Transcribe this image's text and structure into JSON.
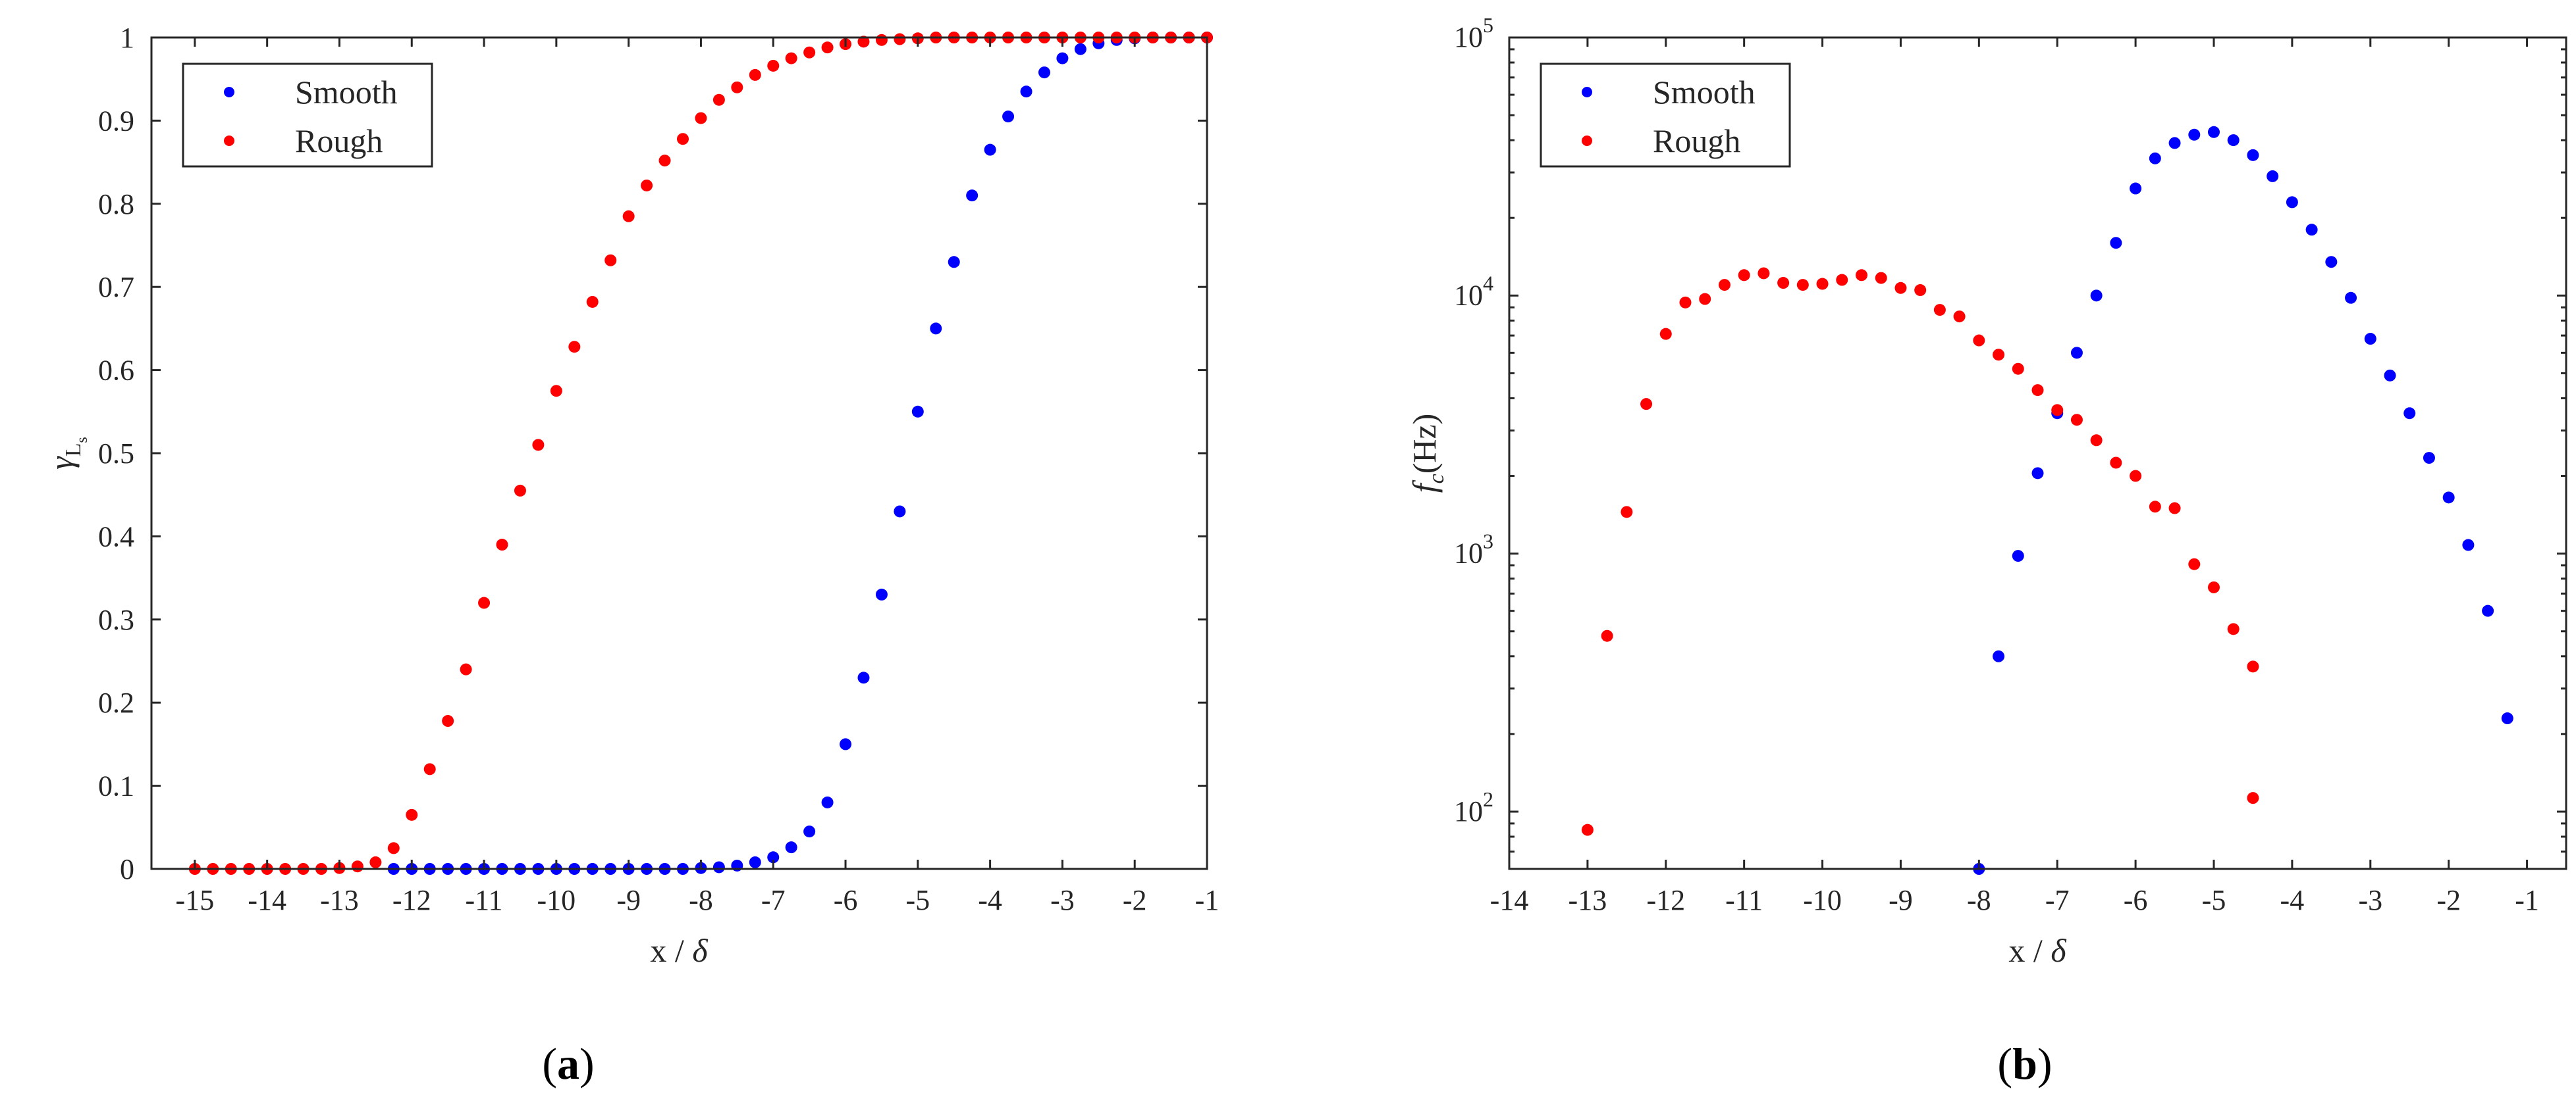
{
  "chart_data": [
    {
      "type": "scatter",
      "panel_label": "(a)",
      "panel_letter": "a",
      "title": "",
      "xlabel_main": "x",
      "xlabel_sep": " / ",
      "xlabel_sym": "δ",
      "ylabel_sym": "γ",
      "ylabel_sub": "L",
      "ylabel_subsub": "s",
      "xlim": [
        -15.6,
        -1
      ],
      "ylim": [
        0,
        1
      ],
      "yscale": "linear",
      "xticks": [
        -15,
        -14,
        -13,
        -12,
        -11,
        -10,
        -9,
        -8,
        -7,
        -6,
        -5,
        -4,
        -3,
        -2,
        -1
      ],
      "xtick_labels": [
        "-15",
        "-14",
        "-13",
        "-12",
        "-11",
        "-10",
        "-9",
        "-8",
        "-7",
        "-6",
        "-5",
        "-4",
        "-3",
        "-2",
        "-1"
      ],
      "yticks": [
        0,
        0.1,
        0.2,
        0.3,
        0.4,
        0.5,
        0.6,
        0.7,
        0.8,
        0.9,
        1
      ],
      "ytick_labels": [
        "0",
        "0.1",
        "0.2",
        "0.3",
        "0.4",
        "0.5",
        "0.6",
        "0.7",
        "0.8",
        "0.9",
        "1"
      ],
      "grid": false,
      "legend_position": "top-left",
      "series": [
        {
          "name": "Smooth",
          "color": "#0000ff",
          "x": [
            -12.25,
            -12,
            -11.75,
            -11.5,
            -11.25,
            -11,
            -10.75,
            -10.5,
            -10.25,
            -10,
            -9.75,
            -9.5,
            -9.25,
            -9,
            -8.75,
            -8.5,
            -8.25,
            -8,
            -7.75,
            -7.5,
            -7.25,
            -7,
            -6.75,
            -6.5,
            -6.25,
            -6,
            -5.75,
            -5.5,
            -5.25,
            -5,
            -4.75,
            -4.5,
            -4.25,
            -4,
            -3.75,
            -3.5,
            -3.25,
            -3,
            -2.75,
            -2.5,
            -2.25,
            -2,
            -1.75,
            -1.5,
            -1.25,
            -1
          ],
          "y": [
            0,
            0,
            0,
            0,
            0,
            0,
            0,
            0,
            0,
            0,
            0,
            0,
            0,
            0,
            0,
            0,
            0,
            0.001,
            0.002,
            0.004,
            0.008,
            0.014,
            0.026,
            0.045,
            0.08,
            0.15,
            0.23,
            0.33,
            0.43,
            0.55,
            0.65,
            0.73,
            0.81,
            0.865,
            0.905,
            0.935,
            0.958,
            0.975,
            0.986,
            0.993,
            0.997,
            0.999,
            1,
            1,
            1,
            1
          ]
        },
        {
          "name": "Rough",
          "color": "#ff0000",
          "x": [
            -15,
            -14.75,
            -14.5,
            -14.25,
            -14,
            -13.75,
            -13.5,
            -13.25,
            -13,
            -12.75,
            -12.5,
            -12.25,
            -12,
            -11.75,
            -11.5,
            -11.25,
            -11,
            -10.75,
            -10.5,
            -10.25,
            -10,
            -9.75,
            -9.5,
            -9.25,
            -9,
            -8.75,
            -8.5,
            -8.25,
            -8,
            -7.75,
            -7.5,
            -7.25,
            -7,
            -6.75,
            -6.5,
            -6.25,
            -6,
            -5.75,
            -5.5,
            -5.25,
            -5,
            -4.75,
            -4.5,
            -4.25,
            -4,
            -3.75,
            -3.5,
            -3.25,
            -3,
            -2.75,
            -2.5,
            -2.25,
            -2,
            -1.75,
            -1.5,
            -1.25,
            -1
          ],
          "y": [
            0,
            0,
            0,
            0,
            0,
            0,
            0,
            0,
            0.001,
            0.003,
            0.008,
            0.025,
            0.065,
            0.12,
            0.178,
            0.24,
            0.32,
            0.39,
            0.455,
            0.51,
            0.575,
            0.628,
            0.682,
            0.732,
            0.785,
            0.822,
            0.852,
            0.878,
            0.903,
            0.925,
            0.94,
            0.955,
            0.966,
            0.975,
            0.982,
            0.988,
            0.992,
            0.995,
            0.997,
            0.998,
            0.999,
            1,
            1,
            1,
            1,
            1,
            1,
            1,
            1,
            1,
            1,
            1,
            1,
            1,
            1,
            1,
            1
          ]
        }
      ]
    },
    {
      "type": "scatter",
      "panel_label": "(b)",
      "panel_letter": "b",
      "title": "",
      "xlabel_main": "x",
      "xlabel_sep": " / ",
      "xlabel_sym": "δ",
      "ylabel_sym": "f",
      "ylabel_sub": "c",
      "ylabel_unit": "(Hz)",
      "xlim": [
        -14,
        -0.5
      ],
      "ylim": [
        60,
        100000
      ],
      "yscale": "log",
      "xticks": [
        -14,
        -13,
        -12,
        -11,
        -10,
        -9,
        -8,
        -7,
        -6,
        -5,
        -4,
        -3,
        -2,
        -1
      ],
      "xtick_labels": [
        "-14",
        "-13",
        "-12",
        "-11",
        "-10",
        "-9",
        "-8",
        "-7",
        "-6",
        "-5",
        "-4",
        "-3",
        "-2",
        "-1"
      ],
      "ytick_base": "10",
      "ytick_exponents": [
        "2",
        "3",
        "4",
        "5"
      ],
      "yticks": [
        100,
        1000,
        10000,
        100000
      ],
      "grid": false,
      "legend_position": "top-left",
      "series": [
        {
          "name": "Smooth",
          "color": "#0000ff",
          "x": [
            -8,
            -7.75,
            -7.5,
            -7.25,
            -7,
            -6.75,
            -6.5,
            -6.25,
            -6,
            -5.75,
            -5.5,
            -5.25,
            -5,
            -4.75,
            -4.5,
            -4.25,
            -4,
            -3.75,
            -3.5,
            -3.25,
            -3,
            -2.75,
            -2.5,
            -2.25,
            -2,
            -1.75,
            -1.5,
            -1.25
          ],
          "y": [
            60,
            400,
            980,
            2050,
            3500,
            6000,
            10000,
            16000,
            26000,
            34000,
            39000,
            42000,
            43000,
            40000,
            35000,
            29000,
            23000,
            18000,
            13500,
            9800,
            6800,
            4900,
            3500,
            2350,
            1650,
            1080,
            600,
            230
          ]
        },
        {
          "name": "Rough",
          "color": "#ff0000",
          "x": [
            -13,
            -12.75,
            -12.5,
            -12.25,
            -12,
            -11.75,
            -11.5,
            -11.25,
            -11,
            -10.75,
            -10.5,
            -10.25,
            -10,
            -9.75,
            -9.5,
            -9.25,
            -9,
            -8.75,
            -8.5,
            -8.25,
            -8,
            -7.75,
            -7.5,
            -7.25,
            -7,
            -6.75,
            -6.5,
            -6.25,
            -6,
            -5.75,
            -5.5,
            -5.25,
            -5,
            -4.75,
            -4.5
          ],
          "y": [
            85,
            480,
            1450,
            3800,
            7100,
            9400,
            9700,
            11000,
            12000,
            12200,
            11200,
            11000,
            11100,
            11500,
            12000,
            11700,
            10700,
            10500,
            8800,
            8300,
            6700,
            5900,
            5200,
            4300,
            3600,
            3300,
            2750,
            2250,
            2000,
            1520,
            1500,
            910,
            740,
            510,
            365
          ]
        },
        {
          "name": "Rough-extra",
          "legend": false,
          "color": "#ff0000",
          "x": [
            -4.5
          ],
          "y": [
            113
          ]
        }
      ]
    }
  ]
}
